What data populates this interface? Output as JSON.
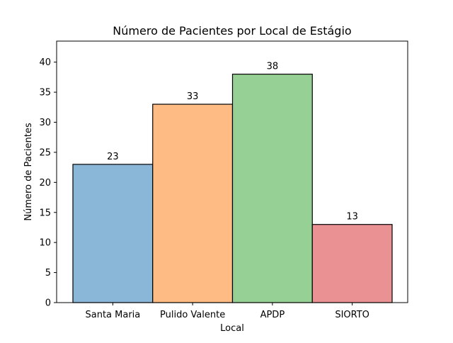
{
  "chart_data": {
    "type": "bar",
    "title": "Número de Pacientes por Local de Estágio",
    "xlabel": "Local",
    "ylabel": "Número de Pacientes",
    "categories": [
      "Santa Maria",
      "Pulido Valente",
      "APDP",
      "SIORTO"
    ],
    "values": [
      23,
      33,
      38,
      13
    ],
    "data_labels": [
      "23",
      "33",
      "38",
      "13"
    ],
    "colors": [
      "#8ab6d7",
      "#ffbb84",
      "#96d095",
      "#ea9193"
    ],
    "ylim": [
      0,
      43.5
    ],
    "yticks": [
      0,
      5,
      10,
      15,
      20,
      25,
      30,
      35,
      40
    ],
    "grid": false,
    "legend": "none"
  }
}
